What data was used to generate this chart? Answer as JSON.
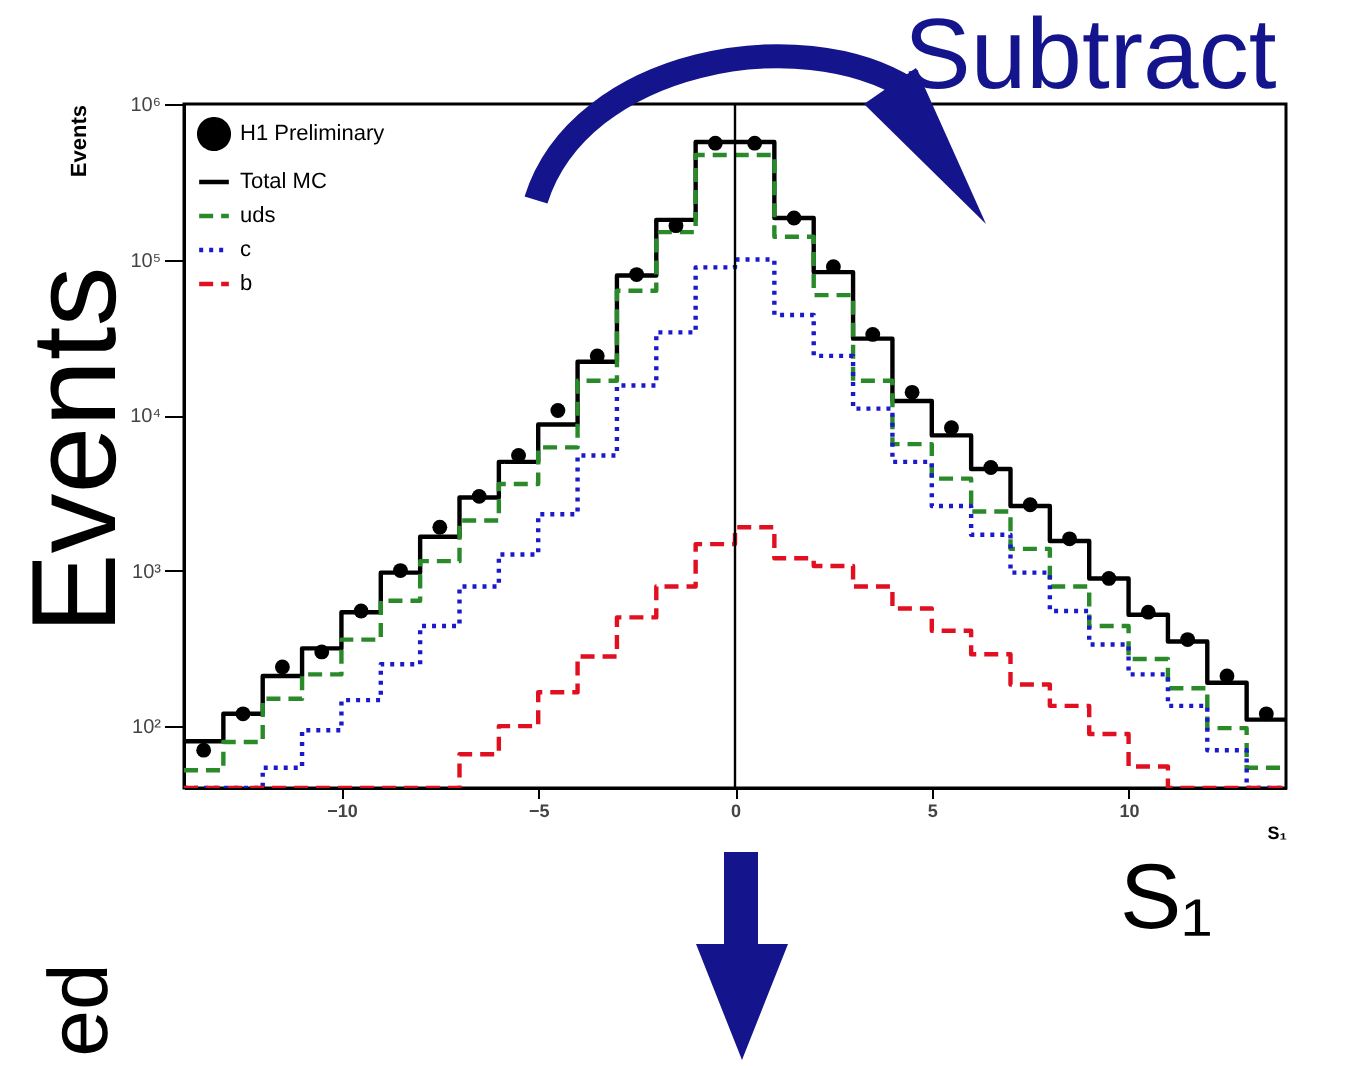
{
  "chart_data": {
    "type": "histogram",
    "xlabel": "S₁",
    "ylabel": "Events",
    "annotations": [
      "Subtract",
      "Events",
      "S₁",
      "ed"
    ],
    "bins": [
      -14,
      -13,
      -12,
      -11,
      -10,
      -9,
      -8,
      -7,
      -6,
      -5,
      -4,
      -3,
      -2,
      -1,
      0,
      1,
      2,
      3,
      4,
      5,
      6,
      7,
      8,
      9,
      10,
      11,
      12,
      13,
      14
    ],
    "series": [
      {
        "name": "H1 Preliminary",
        "type": "scatter",
        "marker": "circle",
        "color": "#000000",
        "x": [
          -13.5,
          -12.5,
          -11.5,
          -10.5,
          -9.5,
          -8.5,
          -7.5,
          -6.5,
          -5.5,
          -4.5,
          -3.5,
          -2.5,
          -1.5,
          -0.5,
          0.5,
          1.5,
          2.5,
          3.5,
          4.5,
          5.5,
          6.5,
          7.5,
          8.5,
          9.5,
          10.5,
          11.5,
          12.5,
          13.5
        ],
        "values": [
          70,
          120,
          240,
          300,
          550,
          1000,
          1900,
          3000,
          5500,
          10700,
          24000,
          80000,
          165000,
          560000,
          560000,
          185000,
          90000,
          33000,
          14000,
          8300,
          4600,
          2650,
          1600,
          890,
          540,
          360,
          210,
          120
        ]
      },
      {
        "name": "Total MC",
        "line_style": "solid",
        "color": "#000000",
        "values": [
          80,
          120,
          210,
          316,
          540,
          970,
          1650,
          2950,
          5000,
          8700,
          22000,
          79000,
          180000,
          570000,
          570000,
          185000,
          83000,
          31000,
          12300,
          7400,
          4500,
          2600,
          1550,
          890,
          520,
          350,
          190,
          110
        ]
      },
      {
        "name": "uds",
        "line_style": "dashed",
        "color": "#2a8a2a",
        "values": [
          52,
          79,
          150,
          215,
          360,
          640,
          1150,
          2100,
          3600,
          6200,
          16600,
          63000,
          150000,
          470000,
          470000,
          140000,
          59000,
          16600,
          6500,
          3900,
          2400,
          1380,
          790,
          440,
          270,
          175,
          97,
          54
        ]
      },
      {
        "name": "c",
        "line_style": "dotted",
        "color": "#1a1acc",
        "values": [
          null,
          null,
          54,
          94,
          147,
          250,
          440,
          790,
          1270,
          2300,
          5500,
          15500,
          34000,
          89000,
          100000,
          44000,
          24000,
          11000,
          5000,
          2600,
          1700,
          970,
          550,
          335,
          215,
          135,
          70,
          null
        ]
      },
      {
        "name": "b",
        "line_style": "dashed",
        "color": "#e01020",
        "values": [
          null,
          null,
          null,
          null,
          null,
          null,
          null,
          66,
          100,
          165,
          280,
          500,
          790,
          1480,
          1900,
          1200,
          1070,
          790,
          570,
          410,
          290,
          185,
          135,
          89,
          55,
          null,
          null,
          null
        ]
      }
    ],
    "xlim": [
      -14,
      14
    ],
    "xticks": [
      -10,
      -5,
      0,
      5,
      10
    ],
    "ylim": [
      40,
      1000000
    ],
    "yticks": [
      {
        "value": 100,
        "label": "10²"
      },
      {
        "value": 1000,
        "label": "10³"
      },
      {
        "value": 10000,
        "label": "10⁴"
      },
      {
        "value": 100000,
        "label": "10⁵"
      },
      {
        "value": 1000000,
        "label": "10⁶"
      }
    ],
    "log": "y",
    "grid": false,
    "legend": "top left",
    "ref_lines": [
      {
        "axis": "x",
        "value": 0,
        "color": "#000000"
      }
    ]
  }
}
